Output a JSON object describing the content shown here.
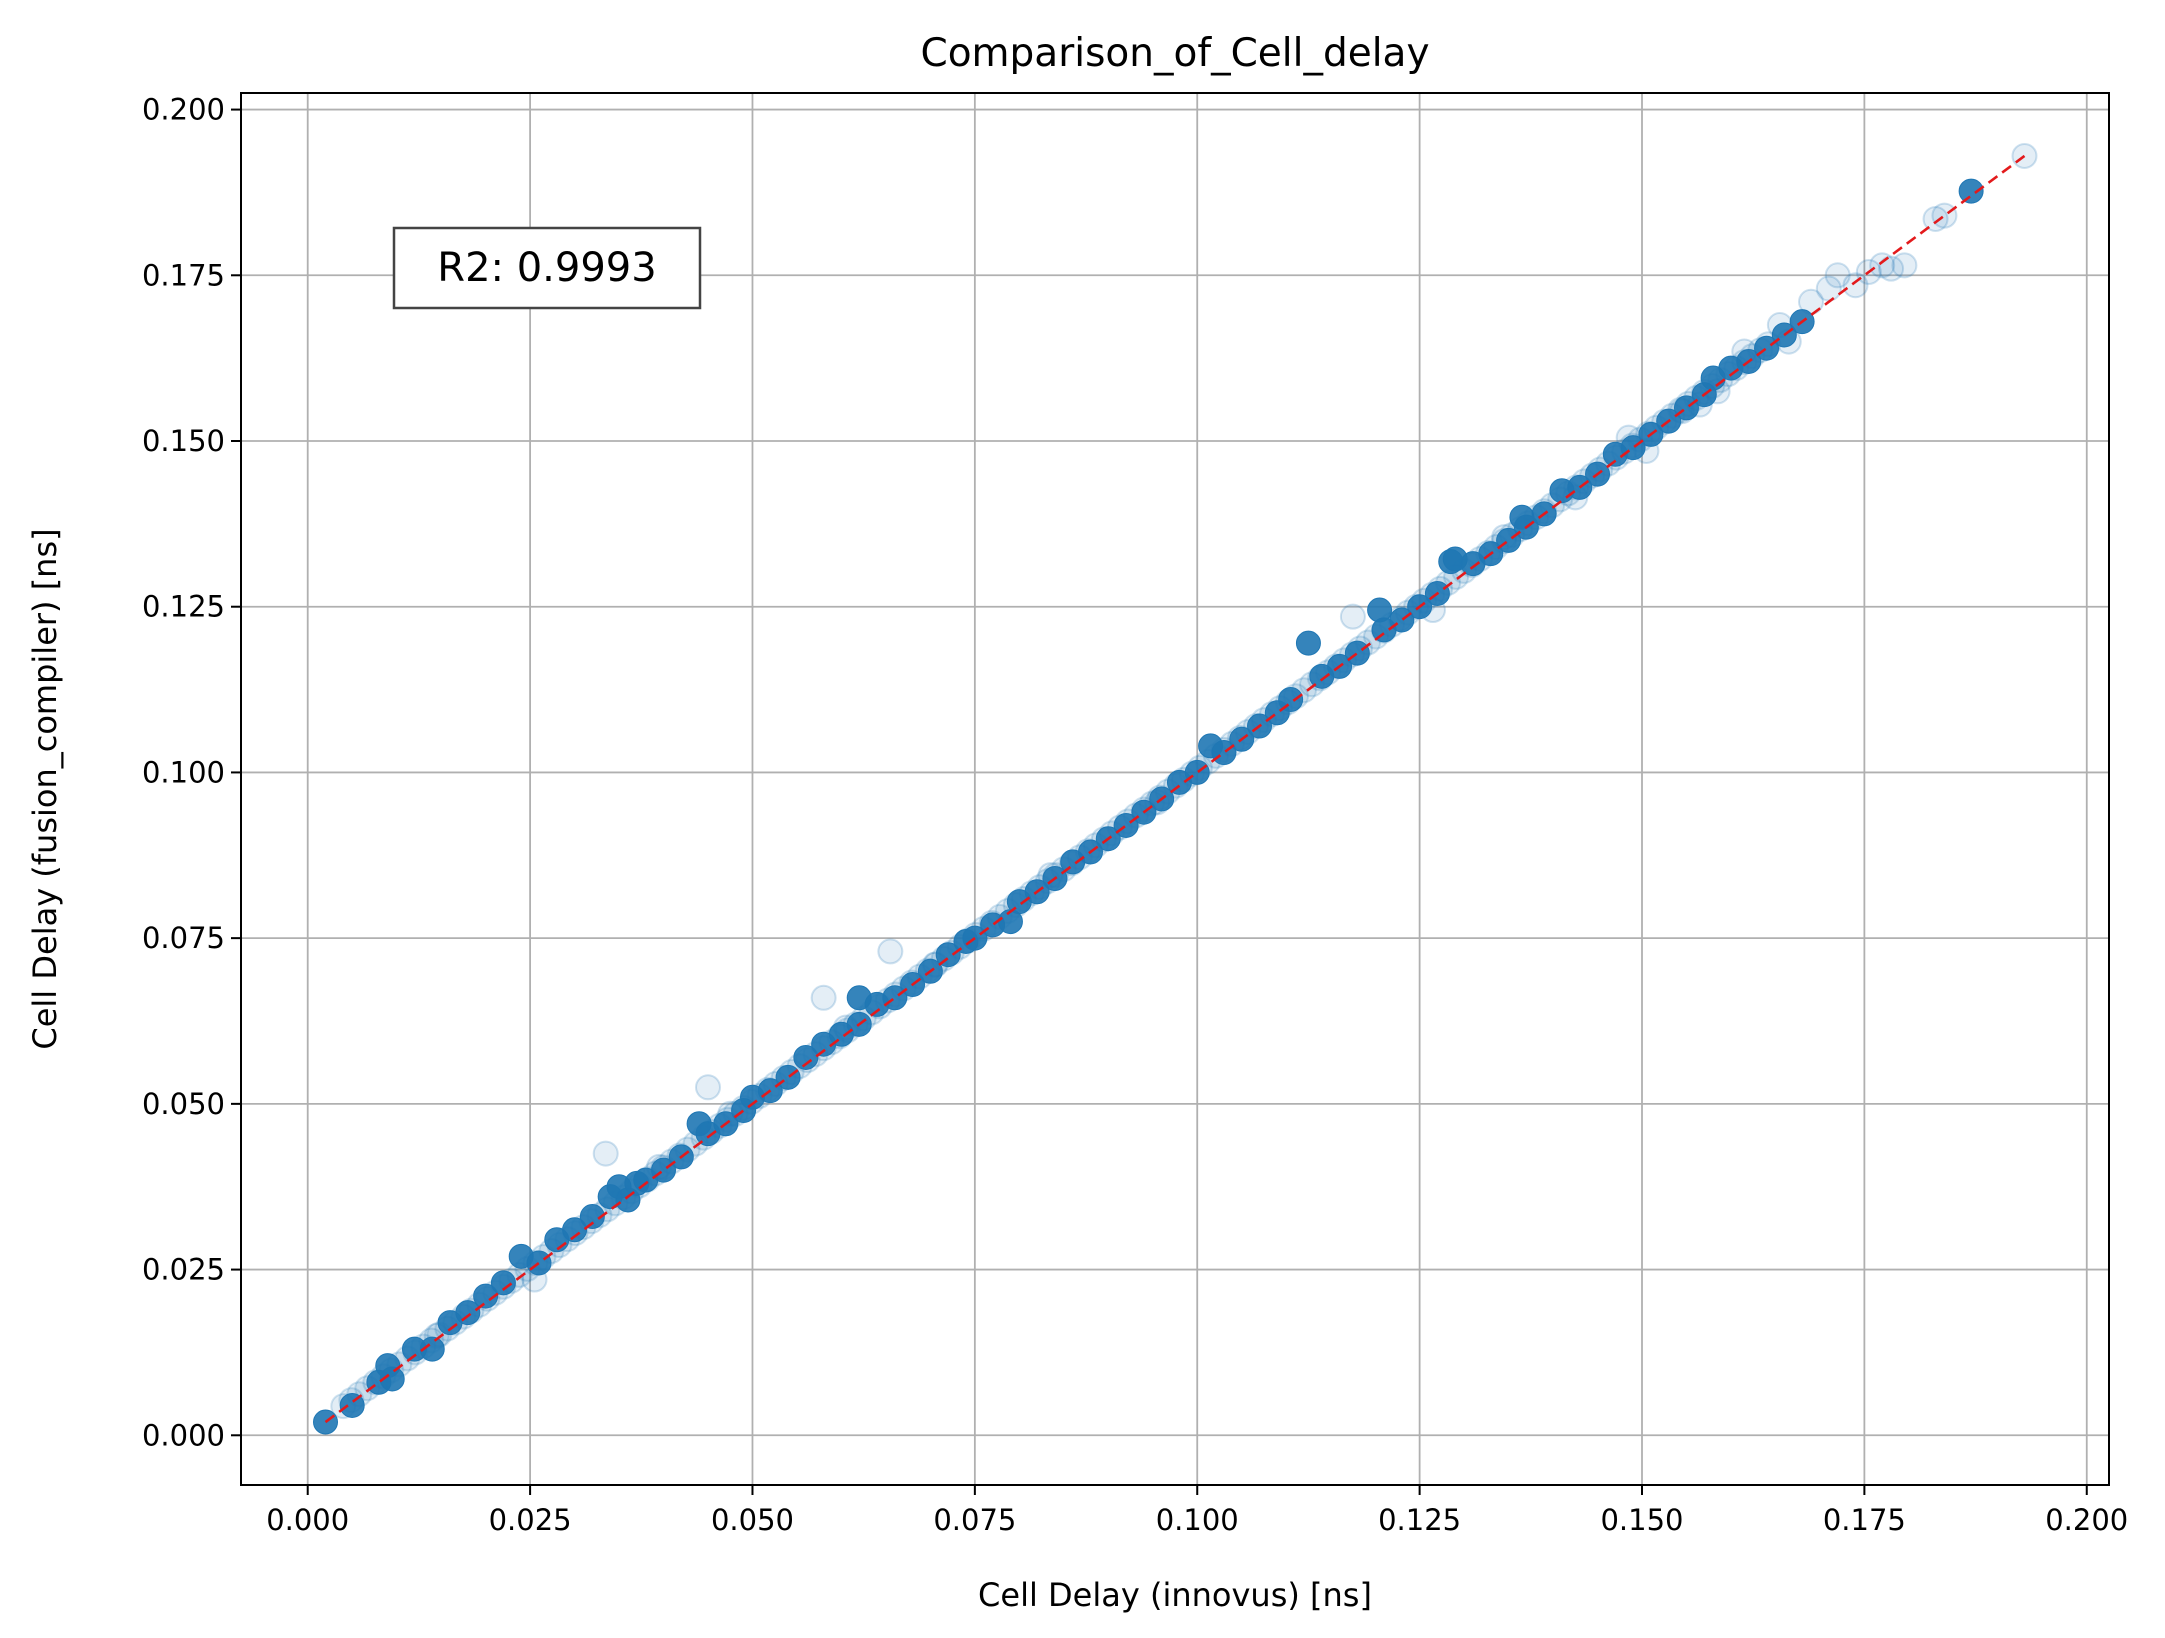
{
  "chart_data": {
    "type": "scatter",
    "title": "Comparison_of_Cell_delay",
    "xlabel": "Cell Delay (innovus) [ns]",
    "ylabel": "Cell Delay (fusion_compiler) [ns]",
    "xlim": [
      -0.0075,
      0.2025
    ],
    "ylim": [
      -0.0075,
      0.2025
    ],
    "xticks": [
      "0.000",
      "0.025",
      "0.050",
      "0.075",
      "0.100",
      "0.125",
      "0.150",
      "0.175",
      "0.200"
    ],
    "yticks": [
      "0.000",
      "0.025",
      "0.050",
      "0.075",
      "0.100",
      "0.125",
      "0.150",
      "0.175",
      "0.200"
    ],
    "grid": true,
    "annotation": "R2: 0.9993",
    "colors": {
      "points": "#1f77b4",
      "reference_line": "#e31a1c",
      "grid": "#b0b0b0"
    },
    "reference_line": {
      "x": [
        0.002,
        0.193
      ],
      "y": [
        0.002,
        0.193
      ],
      "style": "dashed"
    },
    "series": [
      {
        "points": [
          [
            0.002,
            0.002
          ],
          [
            0.005,
            0.0045
          ],
          [
            0.008,
            0.008
          ],
          [
            0.009,
            0.0105
          ],
          [
            0.0095,
            0.0085
          ],
          [
            0.012,
            0.013
          ],
          [
            0.014,
            0.013
          ],
          [
            0.016,
            0.017
          ],
          [
            0.018,
            0.0185
          ],
          [
            0.02,
            0.021
          ],
          [
            0.022,
            0.023
          ],
          [
            0.024,
            0.027
          ],
          [
            0.026,
            0.026
          ],
          [
            0.028,
            0.0295
          ],
          [
            0.03,
            0.031
          ],
          [
            0.032,
            0.033
          ],
          [
            0.034,
            0.036
          ],
          [
            0.035,
            0.0375
          ],
          [
            0.036,
            0.0355
          ],
          [
            0.037,
            0.038
          ],
          [
            0.038,
            0.0385
          ],
          [
            0.04,
            0.04
          ],
          [
            0.042,
            0.042
          ],
          [
            0.044,
            0.047
          ],
          [
            0.045,
            0.0455
          ],
          [
            0.047,
            0.047
          ],
          [
            0.049,
            0.049
          ],
          [
            0.05,
            0.051
          ],
          [
            0.052,
            0.052
          ],
          [
            0.054,
            0.054
          ],
          [
            0.056,
            0.057
          ],
          [
            0.058,
            0.059
          ],
          [
            0.06,
            0.0605
          ],
          [
            0.062,
            0.066
          ],
          [
            0.062,
            0.062
          ],
          [
            0.064,
            0.065
          ],
          [
            0.066,
            0.066
          ],
          [
            0.068,
            0.068
          ],
          [
            0.07,
            0.07
          ],
          [
            0.072,
            0.0725
          ],
          [
            0.074,
            0.0745
          ],
          [
            0.075,
            0.075
          ],
          [
            0.077,
            0.077
          ],
          [
            0.079,
            0.0775
          ],
          [
            0.08,
            0.0805
          ],
          [
            0.082,
            0.082
          ],
          [
            0.084,
            0.084
          ],
          [
            0.086,
            0.0865
          ],
          [
            0.088,
            0.088
          ],
          [
            0.09,
            0.09
          ],
          [
            0.092,
            0.092
          ],
          [
            0.094,
            0.094
          ],
          [
            0.096,
            0.096
          ],
          [
            0.098,
            0.0985
          ],
          [
            0.1,
            0.1
          ],
          [
            0.1015,
            0.104
          ],
          [
            0.103,
            0.103
          ],
          [
            0.105,
            0.105
          ],
          [
            0.107,
            0.107
          ],
          [
            0.109,
            0.109
          ],
          [
            0.1105,
            0.111
          ],
          [
            0.1125,
            0.1195
          ],
          [
            0.114,
            0.1145
          ],
          [
            0.116,
            0.116
          ],
          [
            0.118,
            0.118
          ],
          [
            0.1205,
            0.1245
          ],
          [
            0.121,
            0.1215
          ],
          [
            0.123,
            0.123
          ],
          [
            0.125,
            0.125
          ],
          [
            0.127,
            0.127
          ],
          [
            0.1285,
            0.1318
          ],
          [
            0.129,
            0.1322
          ],
          [
            0.131,
            0.1315
          ],
          [
            0.133,
            0.133
          ],
          [
            0.135,
            0.135
          ],
          [
            0.1365,
            0.1385
          ],
          [
            0.137,
            0.137
          ],
          [
            0.139,
            0.139
          ],
          [
            0.141,
            0.1425
          ],
          [
            0.143,
            0.143
          ],
          [
            0.145,
            0.145
          ],
          [
            0.147,
            0.148
          ],
          [
            0.149,
            0.149
          ],
          [
            0.151,
            0.151
          ],
          [
            0.153,
            0.153
          ],
          [
            0.155,
            0.155
          ],
          [
            0.157,
            0.157
          ],
          [
            0.158,
            0.1595
          ],
          [
            0.16,
            0.161
          ],
          [
            0.162,
            0.162
          ],
          [
            0.164,
            0.164
          ],
          [
            0.166,
            0.166
          ],
          [
            0.168,
            0.168
          ],
          [
            0.187,
            0.1877
          ]
        ],
        "faint_points": [
          [
            0.0335,
            0.0425
          ],
          [
            0.0655,
            0.073
          ],
          [
            0.045,
            0.0525
          ],
          [
            0.058,
            0.066
          ],
          [
            0.0475,
            0.0485
          ],
          [
            0.0145,
            0.015
          ],
          [
            0.0255,
            0.0235
          ],
          [
            0.0395,
            0.0405
          ],
          [
            0.0605,
            0.0615
          ],
          [
            0.0705,
            0.071
          ],
          [
            0.0835,
            0.0845
          ],
          [
            0.0955,
            0.0955
          ],
          [
            0.1175,
            0.1235
          ],
          [
            0.1265,
            0.1245
          ],
          [
            0.1345,
            0.1355
          ],
          [
            0.1425,
            0.1415
          ],
          [
            0.1505,
            0.1485
          ],
          [
            0.1565,
            0.1555
          ],
          [
            0.1615,
            0.1635
          ],
          [
            0.1655,
            0.1675
          ],
          [
            0.169,
            0.171
          ],
          [
            0.171,
            0.173
          ],
          [
            0.172,
            0.175
          ],
          [
            0.174,
            0.1735
          ],
          [
            0.1755,
            0.1755
          ],
          [
            0.177,
            0.1765
          ],
          [
            0.178,
            0.176
          ],
          [
            0.1795,
            0.1765
          ],
          [
            0.183,
            0.1835
          ],
          [
            0.184,
            0.184
          ],
          [
            0.193,
            0.193
          ],
          [
            0.1585,
            0.1575
          ],
          [
            0.1665,
            0.165
          ],
          [
            0.1545,
            0.1545
          ],
          [
            0.1485,
            0.1505
          ]
        ]
      }
    ]
  }
}
